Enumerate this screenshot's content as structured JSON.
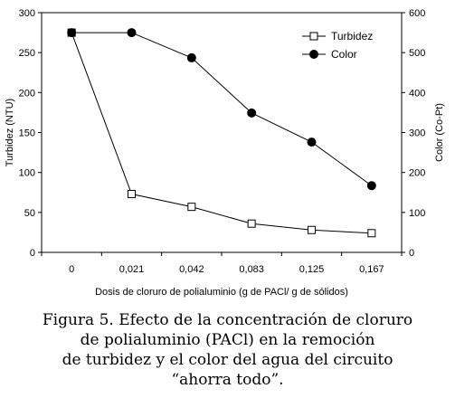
{
  "chart_data": {
    "type": "line",
    "categories": [
      "0",
      "0,021",
      "0,042",
      "0,083",
      "0,125",
      "0,167"
    ],
    "xlabel": "Dosis de cloruro de polialuminio (g de PACl/ g de sólidos)",
    "ylabel_left": "Turbidez (NTU)",
    "ylabel_right": "Color (Co-Pt)",
    "ylim_left": [
      0,
      300
    ],
    "ylim_right": [
      0,
      600
    ],
    "yticks_left": [
      "0",
      "50",
      "100",
      "150",
      "200",
      "250",
      "300"
    ],
    "yticks_right": [
      "0",
      "100",
      "200",
      "300",
      "400",
      "500",
      "600"
    ],
    "legend_position": "top-right",
    "grid": false,
    "series": [
      {
        "name": "Turbidez",
        "axis": "left",
        "marker": "open-square",
        "values": [
          275,
          73,
          57,
          36,
          28,
          24
        ]
      },
      {
        "name": "Color",
        "axis": "right",
        "marker": "filled-circle",
        "values": [
          550,
          550,
          487,
          349,
          276,
          167
        ]
      }
    ]
  },
  "caption": {
    "lines": [
      "Figura 5. Efecto de la concentración de cloruro",
      "de polialuminio (PACl) en la remoción",
      "de turbidez y el color del agua del circuito",
      "“ahorra todo”."
    ]
  }
}
